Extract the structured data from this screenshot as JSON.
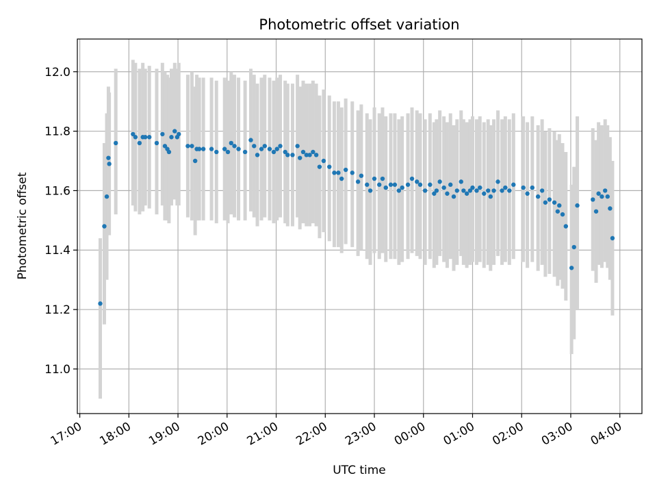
{
  "chart_data": {
    "type": "scatter",
    "title": "Photometric offset variation",
    "xlabel": "UTC time",
    "ylabel": "Photometric offset",
    "xlim": [
      "16:57",
      "04:27"
    ],
    "ylim": [
      10.85,
      12.11
    ],
    "grid": true,
    "colors": {
      "points": "#1f77b4",
      "error_bars": "#d3d3d3"
    },
    "x_ticks": [
      "17:00",
      "18:00",
      "19:00",
      "20:00",
      "21:00",
      "22:00",
      "23:00",
      "00:00",
      "01:00",
      "02:00",
      "03:00",
      "04:00"
    ],
    "y_ticks": [
      "11.0",
      "11.2",
      "11.4",
      "11.6",
      "11.8",
      "12.0"
    ],
    "series": [
      {
        "x": [
          "17:25",
          "17:30",
          "17:33",
          "17:35",
          "17:36",
          "17:44",
          "18:05",
          "18:08",
          "18:13",
          "18:17",
          "18:20",
          "18:25",
          "18:34",
          "18:41",
          "18:44",
          "18:47",
          "18:49",
          "18:52",
          "18:56",
          "18:59",
          "19:01",
          "19:12",
          "19:17",
          "19:21",
          "19:23",
          "19:26",
          "19:31",
          "19:41",
          "19:47",
          "19:57",
          "20:01",
          "20:05",
          "20:09",
          "20:14",
          "20:22",
          "20:29",
          "20:33",
          "20:37",
          "20:42",
          "20:46",
          "20:52",
          "20:57",
          "21:01",
          "21:05",
          "21:11",
          "21:14",
          "21:20",
          "21:26",
          "21:29",
          "21:33",
          "21:37",
          "21:41",
          "21:45",
          "21:49",
          "21:53",
          "21:58",
          "22:05",
          "22:11",
          "22:16",
          "22:20",
          "22:25",
          "22:33",
          "22:40",
          "22:44",
          "22:51",
          "22:55",
          "23:00",
          "23:06",
          "23:10",
          "23:14",
          "23:20",
          "23:25",
          "23:30",
          "23:34",
          "23:41",
          "23:46",
          "23:52",
          "23:56",
          "00:02",
          "00:08",
          "00:13",
          "00:16",
          "00:20",
          "00:25",
          "00:29",
          "00:33",
          "00:37",
          "00:41",
          "00:46",
          "00:49",
          "00:53",
          "00:57",
          "01:00",
          "01:05",
          "01:09",
          "01:14",
          "01:19",
          "01:22",
          "01:26",
          "01:31",
          "01:36",
          "01:40",
          "01:45",
          "01:50",
          "02:02",
          "02:07",
          "02:13",
          "02:20",
          "02:25",
          "02:29",
          "02:34",
          "02:40",
          "02:44",
          "02:46",
          "02:50",
          "02:54",
          "03:01",
          "03:04",
          "03:08",
          "03:27",
          "03:31",
          "03:34",
          "03:38",
          "03:42",
          "03:45",
          "03:48",
          "03:51"
        ],
        "y": [
          11.22,
          11.48,
          11.58,
          11.71,
          11.69,
          11.76,
          11.79,
          11.78,
          11.76,
          11.78,
          11.78,
          11.78,
          11.76,
          11.79,
          11.75,
          11.74,
          11.73,
          11.78,
          11.8,
          11.78,
          11.79,
          11.75,
          11.75,
          11.7,
          11.74,
          11.74,
          11.74,
          11.74,
          11.73,
          11.74,
          11.73,
          11.76,
          11.75,
          11.74,
          11.73,
          11.77,
          11.75,
          11.72,
          11.74,
          11.75,
          11.74,
          11.73,
          11.74,
          11.75,
          11.73,
          11.72,
          11.72,
          11.75,
          11.71,
          11.73,
          11.72,
          11.72,
          11.73,
          11.72,
          11.68,
          11.7,
          11.68,
          11.66,
          11.66,
          11.64,
          11.67,
          11.66,
          11.63,
          11.65,
          11.62,
          11.6,
          11.64,
          11.62,
          11.64,
          11.61,
          11.62,
          11.62,
          11.6,
          11.61,
          11.62,
          11.64,
          11.63,
          11.62,
          11.6,
          11.62,
          11.59,
          11.6,
          11.63,
          11.61,
          11.59,
          11.62,
          11.58,
          11.6,
          11.63,
          11.6,
          11.59,
          11.6,
          11.61,
          11.6,
          11.61,
          11.59,
          11.6,
          11.58,
          11.6,
          11.63,
          11.6,
          11.61,
          11.6,
          11.62,
          11.61,
          11.59,
          11.61,
          11.58,
          11.6,
          11.56,
          11.57,
          11.56,
          11.53,
          11.55,
          11.52,
          11.48,
          11.34,
          11.41,
          11.55,
          11.57,
          11.53,
          11.59,
          11.58,
          11.6,
          11.58,
          11.54,
          11.44
        ],
        "err_low": [
          10.9,
          11.15,
          11.3,
          11.48,
          11.45,
          11.52,
          11.55,
          11.53,
          11.52,
          11.53,
          11.55,
          11.54,
          11.52,
          11.55,
          11.5,
          11.5,
          11.49,
          11.55,
          11.57,
          11.55,
          11.55,
          11.51,
          11.5,
          11.45,
          11.5,
          11.5,
          11.5,
          11.5,
          11.49,
          11.5,
          11.49,
          11.52,
          11.51,
          11.5,
          11.5,
          11.53,
          11.51,
          11.48,
          11.5,
          11.51,
          11.5,
          11.49,
          11.5,
          11.51,
          11.49,
          11.48,
          11.48,
          11.51,
          11.47,
          11.49,
          11.48,
          11.48,
          11.49,
          11.48,
          11.44,
          11.46,
          11.43,
          11.41,
          11.41,
          11.39,
          11.42,
          11.41,
          11.38,
          11.4,
          11.37,
          11.35,
          11.39,
          11.37,
          11.39,
          11.36,
          11.37,
          11.37,
          11.35,
          11.36,
          11.37,
          11.39,
          11.38,
          11.37,
          11.35,
          11.37,
          11.34,
          11.35,
          11.38,
          11.36,
          11.34,
          11.37,
          11.33,
          11.35,
          11.38,
          11.35,
          11.34,
          11.35,
          11.36,
          11.35,
          11.36,
          11.34,
          11.35,
          11.33,
          11.35,
          11.38,
          11.35,
          11.36,
          11.35,
          11.37,
          11.36,
          11.34,
          11.36,
          11.33,
          11.35,
          11.31,
          11.32,
          11.31,
          11.28,
          11.3,
          11.27,
          11.23,
          11.05,
          11.1,
          11.2,
          11.33,
          11.29,
          11.35,
          11.34,
          11.36,
          11.34,
          11.3,
          11.18
        ],
        "err_high": [
          11.44,
          11.76,
          11.86,
          11.95,
          11.93,
          12.01,
          12.04,
          12.03,
          12.01,
          12.03,
          12.01,
          12.02,
          12.01,
          12.03,
          12.0,
          11.99,
          11.98,
          12.01,
          12.03,
          12.01,
          12.03,
          11.99,
          12.0,
          11.95,
          11.99,
          11.98,
          11.98,
          11.98,
          11.97,
          11.98,
          11.97,
          12.0,
          11.99,
          11.98,
          11.97,
          12.01,
          11.99,
          11.96,
          11.98,
          11.99,
          11.98,
          11.97,
          11.98,
          11.99,
          11.97,
          11.96,
          11.96,
          11.99,
          11.95,
          11.97,
          11.96,
          11.96,
          11.97,
          11.96,
          11.92,
          11.94,
          11.92,
          11.9,
          11.9,
          11.88,
          11.91,
          11.9,
          11.87,
          11.89,
          11.86,
          11.84,
          11.88,
          11.86,
          11.88,
          11.85,
          11.86,
          11.86,
          11.84,
          11.85,
          11.86,
          11.88,
          11.87,
          11.86,
          11.84,
          11.86,
          11.83,
          11.84,
          11.87,
          11.85,
          11.83,
          11.86,
          11.82,
          11.84,
          11.87,
          11.84,
          11.83,
          11.84,
          11.85,
          11.84,
          11.85,
          11.83,
          11.84,
          11.82,
          11.84,
          11.87,
          11.84,
          11.85,
          11.84,
          11.86,
          11.85,
          11.83,
          11.85,
          11.82,
          11.84,
          11.8,
          11.81,
          11.8,
          11.77,
          11.79,
          11.76,
          11.73,
          11.62,
          11.68,
          11.85,
          11.81,
          11.77,
          11.83,
          11.82,
          11.84,
          11.82,
          11.78,
          11.7
        ]
      }
    ]
  }
}
